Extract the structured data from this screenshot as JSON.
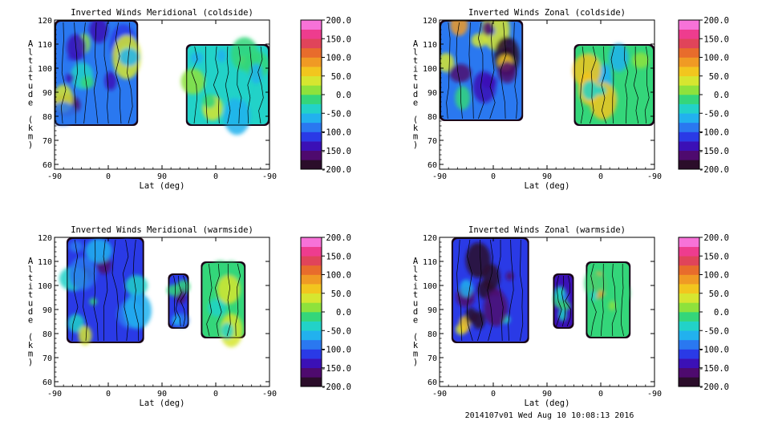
{
  "footer": "2014107v01 Wed Aug 10 10:08:13 2016",
  "colorbar": {
    "ticks": [
      "200.0",
      "150.0",
      "100.0",
      "50.0",
      "0.0",
      "-50.0",
      "-100.0",
      "-150.0",
      "-200.0"
    ],
    "range": [
      -200,
      200
    ]
  },
  "chart_data": [
    {
      "type": "heatmap",
      "title": "Inverted Winds Meridional (coldside)",
      "xlabel": "Lat (deg)",
      "ylabel": "Altitude (km)",
      "xticks": [
        "-90",
        "0",
        "90",
        "0",
        "-90"
      ],
      "yticks": [
        "60",
        "70",
        "80",
        "90",
        "100",
        "110",
        "120"
      ],
      "ylim": [
        58,
        120
      ],
      "blocks": [
        {
          "x_range": [
            -90,
            50
          ],
          "alt_range": [
            76,
            120
          ],
          "mean_value": -90,
          "peak_value": 60
        },
        {
          "x_range": [
            130,
            270
          ],
          "alt_range": [
            76,
            110
          ],
          "mean_value": -40,
          "peak_value": 60
        }
      ]
    },
    {
      "type": "heatmap",
      "title": "Inverted Winds Zonal (coldside)",
      "xlabel": "Lat (deg)",
      "ylabel": "Altitude (km)",
      "xticks": [
        "-90",
        "0",
        "90",
        "0",
        "-90"
      ],
      "yticks": [
        "60",
        "70",
        "80",
        "90",
        "100",
        "110",
        "120"
      ],
      "ylim": [
        58,
        120
      ],
      "blocks": [
        {
          "x_range": [
            -90,
            50
          ],
          "alt_range": [
            78,
            120
          ],
          "mean_value": -80,
          "peak_value": 150
        },
        {
          "x_range": [
            135,
            270
          ],
          "alt_range": [
            76,
            110
          ],
          "mean_value": -20,
          "peak_value": 80
        }
      ]
    },
    {
      "type": "heatmap",
      "title": "Inverted Winds Meridional (warmside)",
      "xlabel": "Lat (deg)",
      "ylabel": "Altitude (km)",
      "xticks": [
        "-90",
        "0",
        "90",
        "0",
        "-90"
      ],
      "yticks": [
        "60",
        "70",
        "80",
        "90",
        "100",
        "110",
        "120"
      ],
      "ylim": [
        58,
        120
      ],
      "blocks": [
        {
          "x_range": [
            -70,
            60
          ],
          "alt_range": [
            76,
            120
          ],
          "mean_value": -110,
          "peak_value": 60
        },
        {
          "x_range": [
            100,
            135
          ],
          "alt_range": [
            82,
            105
          ],
          "mean_value": -120,
          "peak_value": 20
        },
        {
          "x_range": [
            155,
            230
          ],
          "alt_range": [
            78,
            110
          ],
          "mean_value": -20,
          "peak_value": 40
        }
      ]
    },
    {
      "type": "heatmap",
      "title": "Inverted Winds Zonal (warmside)",
      "xlabel": "Lat (deg)",
      "ylabel": "Altitude (km)",
      "xticks": [
        "-90",
        "0",
        "90",
        "0",
        "-90"
      ],
      "yticks": [
        "60",
        "70",
        "80",
        "90",
        "100",
        "110",
        "120"
      ],
      "ylim": [
        58,
        120
      ],
      "blocks": [
        {
          "x_range": [
            -70,
            60
          ],
          "alt_range": [
            76,
            120
          ],
          "mean_value": -110,
          "peak_value": 150
        },
        {
          "x_range": [
            100,
            135
          ],
          "alt_range": [
            82,
            105
          ],
          "mean_value": -130,
          "peak_value": 20
        },
        {
          "x_range": [
            155,
            230
          ],
          "alt_range": [
            78,
            110
          ],
          "mean_value": -20,
          "peak_value": 110
        }
      ]
    }
  ]
}
